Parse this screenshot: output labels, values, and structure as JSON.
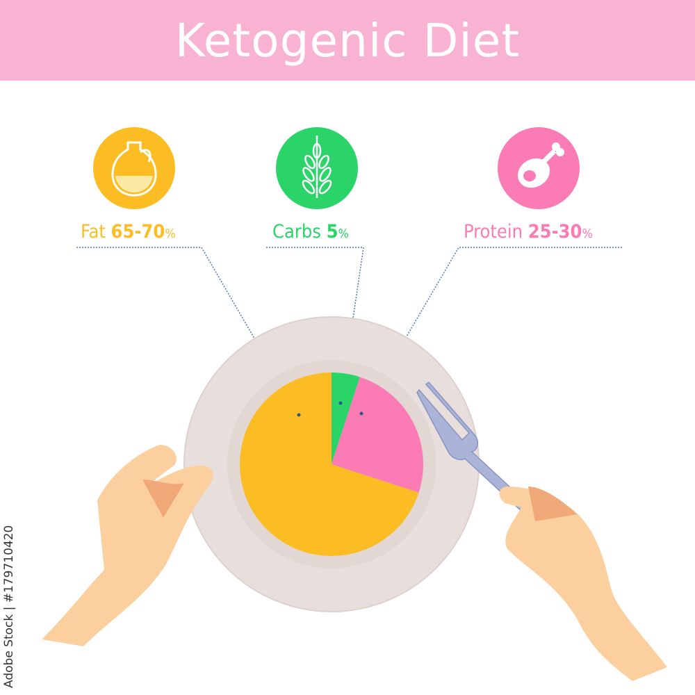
{
  "title": "Ketogenic Diet",
  "credit": "Adobe Stock | #179710420",
  "colors": {
    "banner": "#f9b3d2",
    "fat": "#fbbd23",
    "carbs": "#2ad468",
    "protein": "#fb7bb4",
    "plate": "#e8dedb"
  },
  "icons": [
    {
      "name": "oil-jug-icon",
      "color": "#fbbd23"
    },
    {
      "name": "wheat-icon",
      "color": "#2ad468"
    },
    {
      "name": "ham-leg-icon",
      "color": "#fb7bb4"
    }
  ],
  "labels": {
    "fat": {
      "name": "Fat",
      "value": "65-70",
      "unit": "%"
    },
    "carbs": {
      "name": "Carbs",
      "value": "5",
      "unit": "%"
    },
    "protein": {
      "name": "Protein",
      "value": "25-30",
      "unit": "%"
    }
  },
  "chart_data": {
    "type": "pie",
    "title": "Ketogenic Diet",
    "start": "12 o'clock, clockwise",
    "slices": [
      {
        "label": "Carbs",
        "value": 5,
        "color": "#2ad468"
      },
      {
        "label": "Protein",
        "value": 25,
        "color": "#fb7bb4"
      },
      {
        "label": "Fat",
        "value": 70,
        "color": "#fbbd23"
      }
    ]
  }
}
